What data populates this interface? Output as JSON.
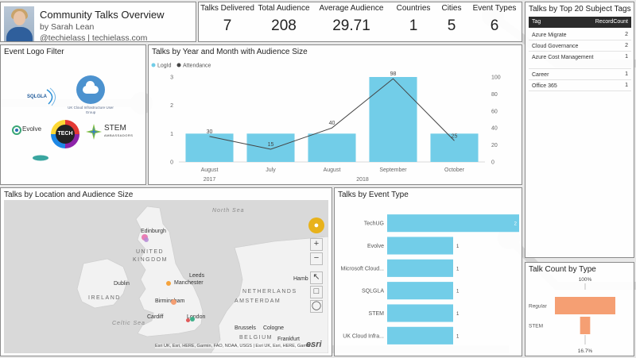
{
  "header": {
    "title": "Community Talks Overview",
    "byline": "by Sarah Lean",
    "handle": "@techielass | techielass.com"
  },
  "kpis": [
    {
      "label": "Talks Delivered",
      "value": "7"
    },
    {
      "label": "Total Audience",
      "value": "208"
    },
    {
      "label": "Average Audience",
      "value": "29.71"
    },
    {
      "label": "Countries",
      "value": "1"
    },
    {
      "label": "Cities",
      "value": "5"
    },
    {
      "label": "Event Types",
      "value": "6"
    }
  ],
  "logo_filter": {
    "title": "Event Logo Filter",
    "logos": [
      {
        "name": "sqlgla-logo",
        "text": "SQLGLA"
      },
      {
        "name": "uk-cloud-infrastructure-logo",
        "text": "UK Cloud Infrastructure User Group"
      },
      {
        "name": "evolve-logo",
        "text": "Evolve"
      },
      {
        "name": "techug-logo",
        "text": "TECH"
      },
      {
        "name": "stem-logo",
        "text": "STEM"
      },
      {
        "name": "stem-ambassadors-sub",
        "text": "AMBASSADORS"
      }
    ]
  },
  "tags": {
    "title": "Talks by Top 20 Subject Tags",
    "columns": [
      "Tag",
      "RecordCount"
    ],
    "rows": [
      {
        "tag": "Azure Migrate",
        "count": "2"
      },
      {
        "tag": "Cloud Governance",
        "count": "2"
      },
      {
        "tag": "Azure Cost Management",
        "count": "1"
      },
      {
        "tag": "Career",
        "count": "1"
      },
      {
        "tag": "Office 365",
        "count": "1"
      }
    ]
  },
  "map": {
    "title": "Talks by Location and Audience Size",
    "labels": {
      "north_sea": "North Sea",
      "edinburgh": "Edinburgh",
      "united_kingdom_1": "UNITED",
      "united_kingdom_2": "KINGDOM",
      "dublin": "Dublin",
      "ireland": "IRELAND",
      "manchester": "Manchester",
      "leeds": "Leeds",
      "birmingham": "Birmingham",
      "cardiff": "Cardiff",
      "london": "London",
      "celtic_sea": "Celtic Sea",
      "amsterdam": "AMSTERDAM",
      "netherlands": "NETHERLANDS",
      "hamburg": "Hamb",
      "brussels": "Brussels",
      "cologne": "Cologne",
      "frankfurt": "Frankfurt",
      "belgium": "BELGIUM"
    },
    "attribution": "Esri UK, Esri, HERE, Garmin, FAO, NOAA, USGS | Esri UK, Esri, HERE, Garmin",
    "zoom_in": "+",
    "zoom_out": "−",
    "accent": "#e8b21b"
  },
  "chart_data": [
    {
      "type": "bar",
      "title": "Talks by Year and Month with Audience Size",
      "legend": [
        "LogId",
        "Attendance"
      ],
      "categories": [
        "August",
        "July",
        "August",
        "September",
        "October"
      ],
      "years": [
        {
          "label": "2017",
          "span": [
            0,
            0
          ]
        },
        {
          "label": "2018",
          "span": [
            1,
            4
          ]
        }
      ],
      "series": [
        {
          "name": "LogId",
          "values": [
            1,
            1,
            1,
            3,
            1
          ],
          "color": "#72cde8"
        },
        {
          "name": "Attendance",
          "values": [
            30,
            15,
            40,
            98,
            25
          ],
          "color": "#444444"
        }
      ],
      "y_left": [
        0,
        1,
        2,
        3
      ],
      "y_right": [
        0,
        20,
        40,
        60,
        80,
        100
      ],
      "ylim_left": [
        0,
        3
      ],
      "ylim_right": [
        0,
        100
      ],
      "legend_position": "top-left"
    },
    {
      "type": "bar",
      "orientation": "horizontal",
      "title": "Talks by Event Type",
      "categories": [
        "TechUG",
        "Evolve",
        "Microsoft Cloud...",
        "SQLGLA",
        "STEM",
        "UK Cloud Infra..."
      ],
      "values": [
        2,
        1,
        1,
        1,
        1,
        1
      ],
      "color": "#72cde8",
      "xlim": [
        0,
        2
      ]
    },
    {
      "type": "bar",
      "orientation": "horizontal",
      "title": "Talk Count by Type",
      "categories": [
        "Regular",
        "STEM"
      ],
      "values": [
        100,
        16.7
      ],
      "value_labels": [
        "100%",
        "16.7%"
      ],
      "color": "#f59f73",
      "xlim": [
        0,
        100
      ]
    }
  ],
  "map_points": [
    {
      "city": "Edinburgh",
      "color": "#e76aa9"
    },
    {
      "city": "Edinburgh",
      "color": "#b48bd6"
    },
    {
      "city": "Manchester",
      "color": "#f5a33c"
    },
    {
      "city": "Birmingham",
      "color": "#f59f73"
    },
    {
      "city": "London",
      "color": "#3fb08a"
    },
    {
      "city": "London",
      "color": "#e05a5a"
    }
  ]
}
